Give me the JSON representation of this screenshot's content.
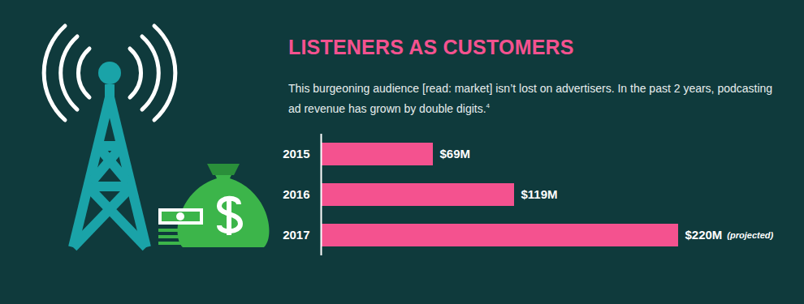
{
  "chart_data": {
    "type": "bar",
    "orientation": "horizontal",
    "title": "LISTENERS AS CUSTOMERS",
    "subtitle": "This burgeoning audience [read: market] isn’t lost on advertisers. In the past 2 years, podcasting ad revenue has grown by double digits.",
    "subtitle_note": "4",
    "categories": [
      "2015",
      "2016",
      "2017"
    ],
    "values": [
      69,
      119,
      220
    ],
    "value_labels": [
      "$69M",
      "$119M",
      "$220M"
    ],
    "annotations": [
      {
        "category": "2017",
        "text": "(projected)"
      }
    ],
    "color": "#f4528f",
    "xlim": [
      0,
      220
    ],
    "data_labels": true,
    "tick_labels": "y",
    "grid": false
  }
}
